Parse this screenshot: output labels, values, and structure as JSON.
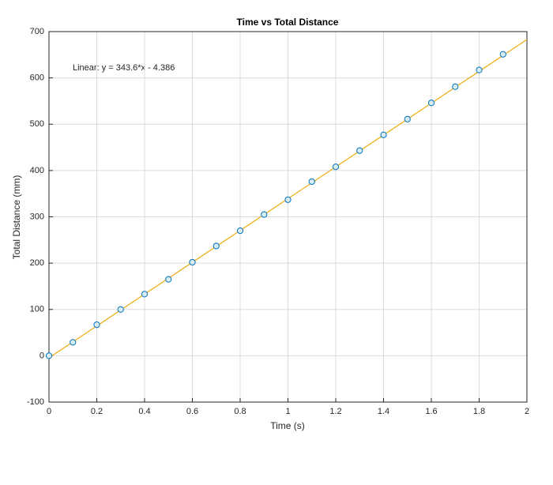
{
  "chart_data": {
    "type": "scatter",
    "title": "Time vs Total Distance",
    "x_label": "Time (s)",
    "y_label": "Total Distance (mm)",
    "annotation": "Linear:  y = 343.6*x - 4.386",
    "series": [
      {
        "color": "#0072bd",
        "marker": "circle",
        "x": [
          0,
          0.1,
          0.2,
          0.3,
          0.4,
          0.5,
          0.6,
          0.7,
          0.8,
          0.9,
          1.0,
          1.1,
          1.2,
          1.3,
          1.4,
          1.5,
          1.6,
          1.7,
          1.8,
          1.9
        ],
        "values": [
          0,
          29,
          67,
          100,
          133,
          165,
          202,
          237,
          270,
          305,
          337,
          376,
          408,
          443,
          477,
          511,
          546,
          581,
          617,
          651
        ]
      },
      {
        "color": "#edb120",
        "marker": "line",
        "x": [
          0,
          2
        ],
        "values": [
          -4.386,
          682.814
        ]
      }
    ],
    "xlim": [
      0,
      2
    ],
    "xticks": [
      0,
      0.2,
      0.4,
      0.6,
      0.8,
      1,
      1.2,
      1.4,
      1.6,
      1.8,
      2
    ],
    "ylim": [
      -100,
      700
    ],
    "yticks": [
      -100,
      0,
      100,
      200,
      300,
      400,
      500,
      600,
      700
    ],
    "grid": true
  }
}
